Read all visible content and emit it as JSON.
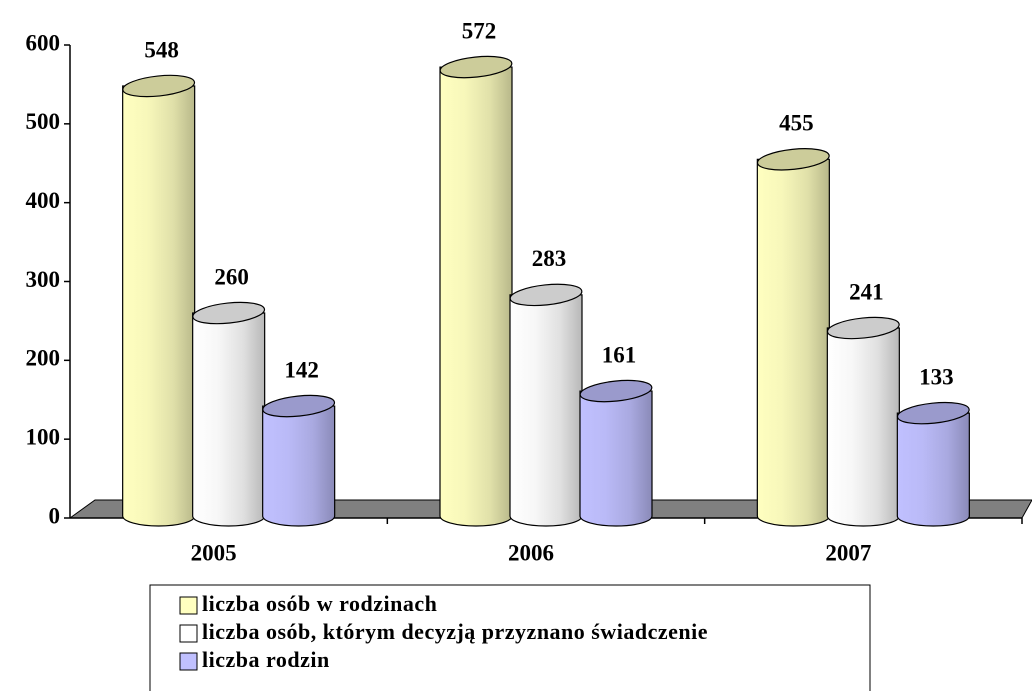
{
  "chart_data": {
    "type": "bar3d",
    "categories": [
      "2005",
      "2006",
      "2007"
    ],
    "series": [
      {
        "name": "liczba osób w rodzinach",
        "color": "#ffffc0",
        "values": [
          548,
          572,
          455
        ]
      },
      {
        "name": "liczba osób, którym decyzją przyznano świadczenie",
        "color": "#ffffff",
        "values": [
          260,
          283,
          241
        ]
      },
      {
        "name": "liczba rodzin",
        "color": "#c0c0ff",
        "values": [
          142,
          161,
          133
        ]
      }
    ],
    "ylim": [
      0,
      600
    ],
    "yticks": [
      0,
      100,
      200,
      300,
      400,
      500,
      600
    ],
    "legend": "bottom"
  }
}
